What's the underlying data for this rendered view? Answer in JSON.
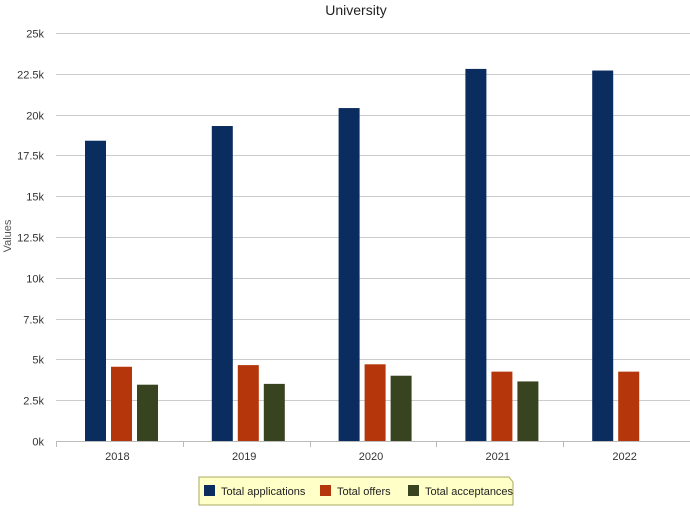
{
  "chart_data": {
    "type": "bar",
    "title": "University",
    "ylabel": "Values",
    "xlabel": "",
    "categories": [
      "2018",
      "2019",
      "2020",
      "2021",
      "2022"
    ],
    "ylim": [
      0,
      25000
    ],
    "yticks": [
      {
        "value": 0,
        "label": "0k"
      },
      {
        "value": 2500,
        "label": "2.5k"
      },
      {
        "value": 5000,
        "label": "5k"
      },
      {
        "value": 7500,
        "label": "7.5k"
      },
      {
        "value": 10000,
        "label": "10k"
      },
      {
        "value": 12500,
        "label": "12.5k"
      },
      {
        "value": 15000,
        "label": "15k"
      },
      {
        "value": 17500,
        "label": "17.5k"
      },
      {
        "value": 20000,
        "label": "20k"
      },
      {
        "value": 22500,
        "label": "22.5k"
      },
      {
        "value": 25000,
        "label": "25k"
      }
    ],
    "grid": true,
    "legend_position": "bottom",
    "series": [
      {
        "name": "Total applications",
        "color": "#0b2c5e",
        "values": [
          18400,
          19300,
          20400,
          22800,
          22700
        ]
      },
      {
        "name": "Total offers",
        "color": "#b5360a",
        "values": [
          4550,
          4650,
          4700,
          4250,
          4250
        ]
      },
      {
        "name": "Total acceptances",
        "color": "#38431f",
        "values": [
          3450,
          3500,
          4000,
          3650,
          null
        ]
      }
    ]
  }
}
